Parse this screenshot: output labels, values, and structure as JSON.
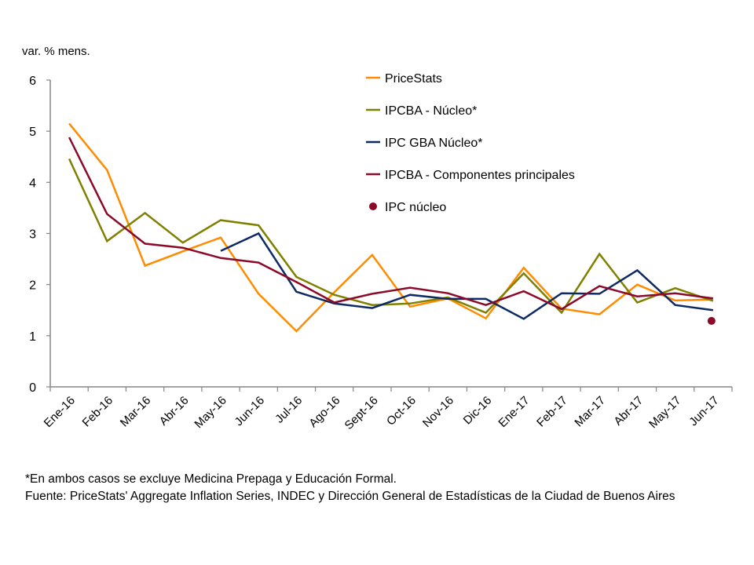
{
  "chart_data": {
    "type": "line",
    "ylabel": "var. % mens.",
    "ylim": [
      0,
      6
    ],
    "yticks": [
      "0",
      "1",
      "2",
      "3",
      "4",
      "5",
      "6"
    ],
    "grid": false,
    "legend_placement": "top-center",
    "categories": [
      "Ene-16",
      "Feb-16",
      "Mar-16",
      "Abr-16",
      "May-16",
      "Jun-16",
      "Jul-16",
      "Ago-16",
      "Sept-16",
      "Oct-16",
      "Nov-16",
      "Dic-16",
      "Ene-17",
      "Feb-17",
      "Mar-17",
      "Abr-17",
      "May-17",
      "Jun-17"
    ],
    "series": [
      {
        "name": "PriceStats",
        "color": "#FF8C00",
        "kind": "line",
        "values": [
          5.15,
          4.24,
          2.37,
          2.65,
          2.92,
          1.82,
          1.09,
          1.85,
          2.58,
          1.57,
          1.73,
          1.34,
          2.33,
          1.53,
          1.42,
          2.0,
          1.69,
          1.71
        ]
      },
      {
        "name": "IPCBA - Núcleo*",
        "color": "#808000",
        "kind": "line",
        "values": [
          4.46,
          2.85,
          3.4,
          2.82,
          3.26,
          3.16,
          2.15,
          1.8,
          1.6,
          1.63,
          1.75,
          1.45,
          2.22,
          1.45,
          2.6,
          1.65,
          1.93,
          1.68
        ]
      },
      {
        "name": "IPC GBA Núcleo*",
        "color": "#0E2A64",
        "kind": "line",
        "values": [
          null,
          null,
          null,
          null,
          2.66,
          3.0,
          1.86,
          1.63,
          1.54,
          1.8,
          1.72,
          1.72,
          1.33,
          1.83,
          1.82,
          2.28,
          1.6,
          1.5
        ]
      },
      {
        "name": "IPCBA - Componentes principales",
        "color": "#8B0A2A",
        "kind": "line",
        "values": [
          4.88,
          3.38,
          2.8,
          2.72,
          2.52,
          2.43,
          2.05,
          1.65,
          1.82,
          1.94,
          1.83,
          1.6,
          1.87,
          1.52,
          1.97,
          1.77,
          1.83,
          1.73
        ]
      },
      {
        "name": "IPC núcleo",
        "color": "#8B0A2A",
        "kind": "point",
        "values": [
          null,
          null,
          null,
          null,
          null,
          null,
          null,
          null,
          null,
          null,
          null,
          null,
          null,
          null,
          null,
          null,
          null,
          1.29
        ]
      }
    ]
  },
  "footnotes": {
    "note": "*En ambos casos se excluye Medicina Prepaga y Educación Formal.",
    "source": "Fuente: PriceStats' Aggregate Inflation Series, INDEC y Dirección General de Estadísticas de la Ciudad de Buenos Aires"
  }
}
